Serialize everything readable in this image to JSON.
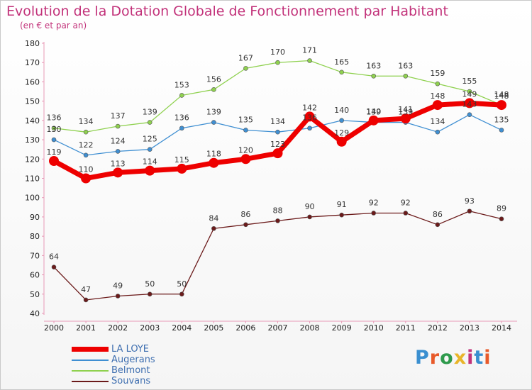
{
  "title": "Evolution de la Dotation Globale de Fonctionnement par Habitant",
  "subtitle": "(en € et par an)",
  "logo": {
    "text": "Proxiti",
    "colors": [
      "#3a8fd0",
      "#e85a2a",
      "#2e9a4c",
      "#e9b52a",
      "#c2327a",
      "#3a8fd0",
      "#e85a2a"
    ]
  },
  "chart_data": {
    "type": "line",
    "title": "Evolution de la Dotation Globale de Fonctionnement par Habitant",
    "subtitle": "(en € et par an)",
    "xlabel": "",
    "ylabel": "",
    "x": [
      "2000",
      "2001",
      "2002",
      "2003",
      "2004",
      "2005",
      "2006",
      "2007",
      "2008",
      "2009",
      "2010",
      "2011",
      "2012",
      "2013",
      "2014"
    ],
    "ylim": [
      40,
      180
    ],
    "yticks": [
      40,
      50,
      60,
      70,
      80,
      90,
      100,
      110,
      120,
      130,
      140,
      150,
      160,
      170,
      180
    ],
    "grid": false,
    "legend_position": "bottom-left",
    "series": [
      {
        "name": "LA LOYE",
        "color": "#ee0000",
        "values": [
          119,
          110,
          113,
          114,
          115,
          118,
          120,
          123,
          142,
          129,
          140,
          141,
          148,
          149,
          148
        ]
      },
      {
        "name": "Augerans",
        "color": "#3f8fd2",
        "values": [
          130,
          122,
          124,
          125,
          136,
          139,
          135,
          134,
          136,
          140,
          139,
          139,
          134,
          143,
          135
        ]
      },
      {
        "name": "Belmont",
        "color": "#8fd14f",
        "values": [
          136,
          134,
          137,
          139,
          153,
          156,
          167,
          170,
          171,
          165,
          163,
          163,
          159,
          155,
          148
        ]
      },
      {
        "name": "Souvans",
        "color": "#6b1a1a",
        "values": [
          64,
          47,
          49,
          50,
          50,
          84,
          86,
          88,
          90,
          91,
          92,
          92,
          86,
          93,
          89
        ]
      }
    ]
  }
}
